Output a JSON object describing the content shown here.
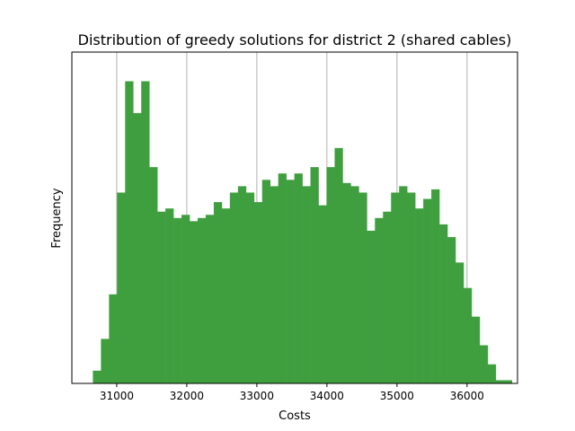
{
  "chart_data": {
    "type": "bar",
    "title": "Distribution of greedy solutions for district 2 (shared cables)",
    "xlabel": "Costs",
    "ylabel": "Frequency",
    "xlim": [
      30360,
      36720
    ],
    "ylim": [
      0,
      1.0
    ],
    "y_ticks_shown": false,
    "grid": "x",
    "bar_color": "#3f9f3f",
    "grid_color": "#b0b0b0",
    "bin_width": 115,
    "bin_start": 30660,
    "x_ticks": [
      31000,
      32000,
      33000,
      34000,
      35000,
      36000
    ],
    "x_tick_labels": [
      "31000",
      "32000",
      "33000",
      "34000",
      "35000",
      "36000"
    ],
    "values": [
      0.04,
      0.14,
      0.28,
      0.6,
      0.95,
      0.85,
      0.95,
      0.68,
      0.54,
      0.55,
      0.52,
      0.53,
      0.51,
      0.52,
      0.53,
      0.57,
      0.55,
      0.6,
      0.62,
      0.6,
      0.57,
      0.64,
      0.62,
      0.66,
      0.64,
      0.66,
      0.62,
      0.68,
      0.56,
      0.68,
      0.74,
      0.63,
      0.62,
      0.6,
      0.48,
      0.52,
      0.54,
      0.6,
      0.62,
      0.6,
      0.55,
      0.58,
      0.61,
      0.5,
      0.46,
      0.38,
      0.3,
      0.21,
      0.12,
      0.06,
      0.01,
      0.01
    ]
  }
}
